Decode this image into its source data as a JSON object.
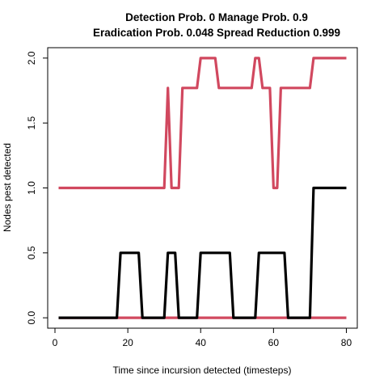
{
  "chart_data": {
    "type": "line",
    "title_line1": "Detection Prob. 0 Manage Prob. 0.9",
    "title_line2": "Eradication Prob. 0.048 Spread Reduction 0.999",
    "xlabel": "Time since incursion detected (timesteps)",
    "ylabel": "Nodes pest detected",
    "xlim": [
      -2,
      83
    ],
    "ylim": [
      -0.08,
      2.08
    ],
    "xticks": [
      "0",
      "20",
      "40",
      "60",
      "80"
    ],
    "xtick_values": [
      0,
      20,
      40,
      60,
      80
    ],
    "yticks": [
      "0.0",
      "0.5",
      "1.0",
      "1.5",
      "2.0"
    ],
    "ytick_values": [
      0,
      0.5,
      1,
      1.5,
      2
    ],
    "grid": false,
    "series": [
      {
        "color": "#d1485f",
        "x": [
          1,
          30,
          31,
          32,
          33,
          34,
          35,
          36,
          37,
          38,
          39,
          40,
          41,
          42,
          43,
          44,
          45,
          46,
          47,
          48,
          49,
          50,
          51,
          52,
          53,
          54,
          55,
          56,
          57,
          58,
          59,
          60,
          61,
          62,
          63,
          64,
          65,
          66,
          67,
          68,
          69,
          70,
          71,
          72,
          73,
          74,
          75,
          76,
          77,
          78,
          79,
          80
        ],
        "values": [
          1,
          1,
          1.77,
          1,
          1,
          1,
          1.77,
          1.77,
          1.77,
          1.77,
          1.77,
          2,
          2,
          2,
          2,
          2,
          1.77,
          1.77,
          1.77,
          1.77,
          1.77,
          1.77,
          1.77,
          1.77,
          1.77,
          1.77,
          2,
          2,
          1.77,
          1.77,
          1.77,
          1,
          1,
          1.77,
          1.77,
          1.77,
          1.77,
          1.77,
          1.77,
          1.77,
          1.77,
          1.77,
          2,
          2,
          2,
          2,
          2,
          2,
          2,
          2,
          2,
          2
        ]
      },
      {
        "color": "#d1485f",
        "x": [
          1,
          80
        ],
        "values": [
          0,
          0
        ]
      },
      {
        "color": "#000000",
        "x": [
          1,
          17,
          18,
          19,
          20,
          21,
          22,
          23,
          24,
          25,
          26,
          27,
          28,
          29,
          30,
          31,
          32,
          33,
          34,
          35,
          36,
          37,
          38,
          39,
          40,
          41,
          42,
          43,
          44,
          45,
          46,
          47,
          48,
          49,
          50,
          51,
          52,
          53,
          54,
          55,
          56,
          57,
          58,
          59,
          60,
          61,
          62,
          63,
          64,
          65,
          66,
          67,
          68,
          69,
          70,
          71,
          72,
          73,
          74,
          75,
          76,
          77,
          78,
          79,
          80
        ],
        "values": [
          0,
          0,
          0.5,
          0.5,
          0.5,
          0.5,
          0.5,
          0.5,
          0,
          0,
          0,
          0,
          0,
          0,
          0,
          0.5,
          0.5,
          0.5,
          0,
          0,
          0,
          0,
          0,
          0,
          0.5,
          0.5,
          0.5,
          0.5,
          0.5,
          0.5,
          0.5,
          0.5,
          0.5,
          0,
          0,
          0,
          0,
          0,
          0,
          0,
          0.5,
          0.5,
          0.5,
          0.5,
          0.5,
          0.5,
          0.5,
          0.5,
          0,
          0,
          0,
          0,
          0,
          0,
          0,
          1,
          1,
          1,
          1,
          1,
          1,
          1,
          1,
          1,
          1
        ]
      }
    ]
  }
}
